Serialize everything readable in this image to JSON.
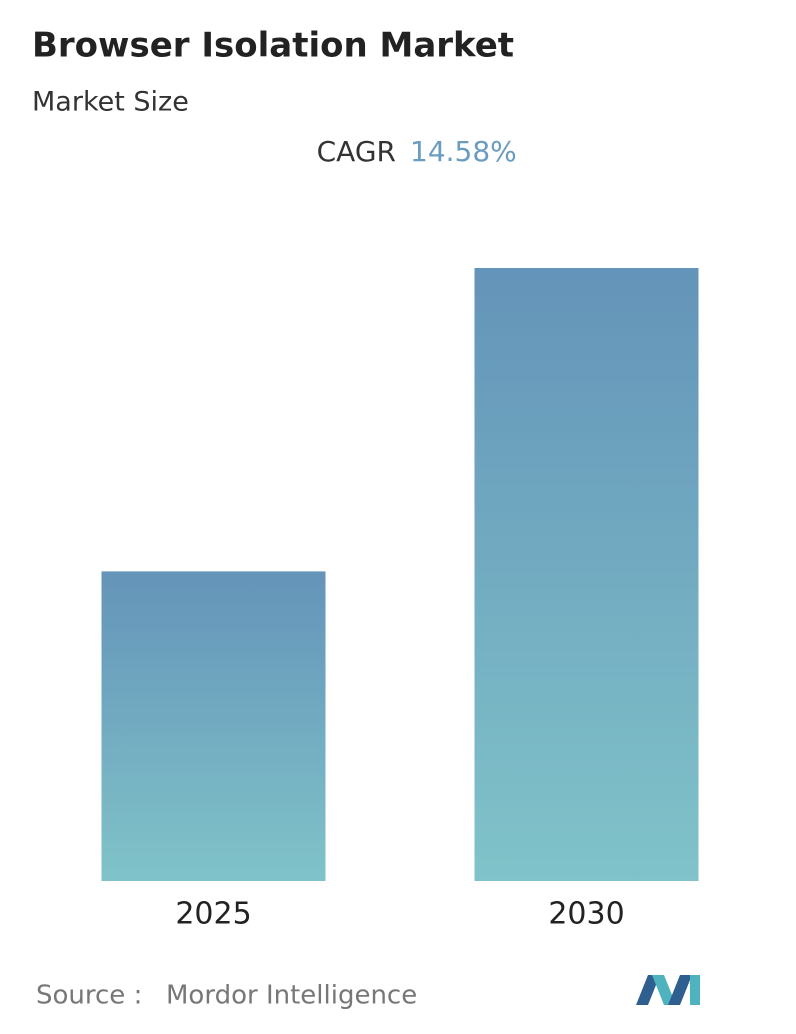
{
  "chart_data": {
    "type": "bar",
    "title": "Browser Isolation Market",
    "subtitle": "Market Size",
    "cagr_label": "CAGR",
    "cagr_value": "14.58%",
    "categories": [
      "2025",
      "2030"
    ],
    "values": [
      1,
      1.98
    ],
    "color_top": "#6494b9",
    "color_bottom": "#80c3c9",
    "source_label": "Source :",
    "source": "Mordor Intelligence"
  }
}
